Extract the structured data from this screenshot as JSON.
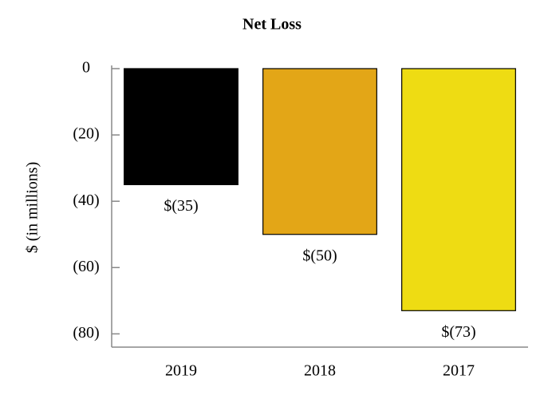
{
  "chart_data": {
    "type": "bar",
    "title": "Net Loss",
    "y_label": "$ (in millions)",
    "categories": [
      "2019",
      "2018",
      "2017"
    ],
    "values": [
      -35,
      -50,
      -73
    ],
    "value_labels": [
      "$(35)",
      "$(50)",
      "$(73)"
    ],
    "colors": [
      "#000000",
      "#e3a617",
      "#eedc13"
    ],
    "ylim": [
      -84,
      0
    ],
    "yticks": [
      {
        "value": 0,
        "label": "0"
      },
      {
        "value": -20,
        "label": "(20)"
      },
      {
        "value": -40,
        "label": "(40)"
      },
      {
        "value": -60,
        "label": "(60)"
      },
      {
        "value": -80,
        "label": "(80)"
      }
    ],
    "grid": false
  }
}
